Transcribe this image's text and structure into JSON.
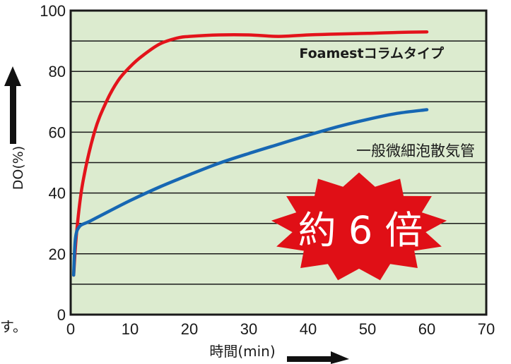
{
  "chart_data": {
    "type": "line",
    "title": "",
    "xlabel": "時間(min)",
    "ylabel": "DO(%)",
    "xlim": [
      0,
      70
    ],
    "ylim": [
      0,
      100
    ],
    "x_ticks": [
      0,
      10,
      20,
      30,
      40,
      50,
      60,
      70
    ],
    "y_ticks": [
      0,
      20,
      40,
      60,
      80,
      100
    ],
    "grid": "horizontal",
    "plot_background": "#dcebcf",
    "series": [
      {
        "name": "Foamestコラムタイプ",
        "color": "#e3131b",
        "x": [
          0.5,
          1,
          2,
          4,
          6,
          8,
          10,
          12,
          15,
          18,
          20,
          25,
          30,
          35,
          40,
          45,
          50,
          55,
          60
        ],
        "y": [
          13,
          27,
          43,
          60,
          70,
          77,
          81.5,
          85,
          89,
          91,
          91.5,
          92,
          92,
          91.5,
          92,
          92.3,
          92.5,
          92.8,
          93
        ]
      },
      {
        "name": "一般微細泡散気管",
        "color": "#1767b3",
        "x": [
          0.5,
          0.8,
          1.5,
          3,
          5,
          10,
          15,
          20,
          25,
          30,
          35,
          40,
          45,
          50,
          55,
          60
        ],
        "y": [
          13,
          25,
          29,
          30.5,
          32.5,
          37.5,
          42,
          46,
          49.8,
          53,
          56,
          59,
          61.8,
          64.2,
          66.2,
          67.4
        ]
      }
    ]
  },
  "callout": {
    "text": "約 6 倍",
    "fill": "#e00f16"
  },
  "edge_text": "す。"
}
